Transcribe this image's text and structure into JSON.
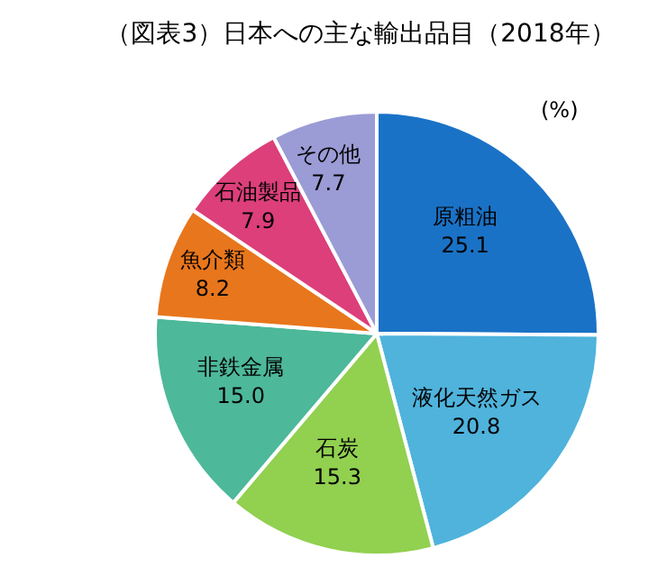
{
  "chart_data": {
    "type": "pie",
    "title": "（図表3）日本への主な輸出品目（2018年）",
    "annotations": [
      "(%)"
    ],
    "categories": [
      "原粗油",
      "液化天然ガス",
      "石炭",
      "非鉄金属",
      "魚介類",
      "石油製品",
      "その他"
    ],
    "values": [
      25.1,
      20.8,
      15.3,
      15.0,
      8.2,
      7.9,
      7.7
    ],
    "value_labels": [
      "25.1",
      "20.8",
      "15.3",
      "15.0",
      "8.2",
      "7.9",
      "7.7"
    ],
    "colors": [
      "#1a72c6",
      "#4fb3dc",
      "#92d050",
      "#4db89a",
      "#e8761c",
      "#dc3f7a",
      "#9b9bd6"
    ],
    "legend": false
  }
}
